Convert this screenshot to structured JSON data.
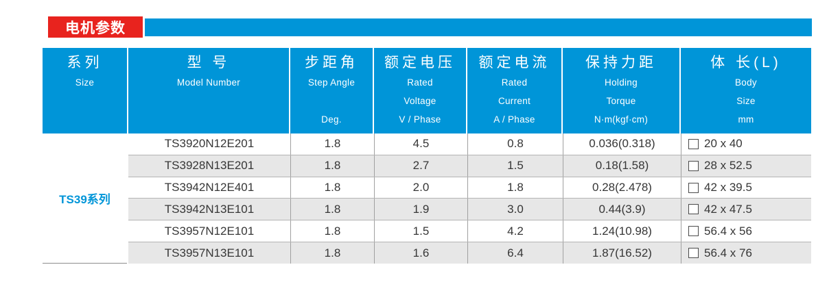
{
  "title": {
    "label": "电机参数"
  },
  "colors": {
    "accent_red": "#e8231e",
    "accent_blue": "#0095d8",
    "row_alt_gray": "#e7e7e7"
  },
  "table": {
    "headers": [
      {
        "zh": "系列",
        "en_lines": [
          "Size",
          "",
          ""
        ]
      },
      {
        "zh": "型 号",
        "en_lines": [
          "Model Number",
          "",
          ""
        ]
      },
      {
        "zh": "步距角",
        "en_lines": [
          "Step Angle",
          "",
          "Deg."
        ]
      },
      {
        "zh": "额定电压",
        "en_lines": [
          "Rated",
          "Voltage",
          "V / Phase"
        ]
      },
      {
        "zh": "额定电流",
        "en_lines": [
          "Rated",
          "Current",
          "A / Phase"
        ]
      },
      {
        "zh": "保持力距",
        "en_lines": [
          "Holding",
          "Torque",
          "N·m(kgf·cm)"
        ]
      },
      {
        "zh": "体 长(L)",
        "en_lines": [
          "Body",
          "Size",
          "mm"
        ]
      }
    ],
    "series_label": "TS39系列",
    "rows": [
      {
        "model": "TS3920N12E201",
        "step": "1.8",
        "voltage": "4.5",
        "current": "0.8",
        "torque": "0.036(0.318)",
        "body": "20 x 40"
      },
      {
        "model": "TS3928N13E201",
        "step": "1.8",
        "voltage": "2.7",
        "current": "1.5",
        "torque": "0.18(1.58)",
        "body": "28 x 52.5"
      },
      {
        "model": "TS3942N12E401",
        "step": "1.8",
        "voltage": "2.0",
        "current": "1.8",
        "torque": "0.28(2.478)",
        "body": "42 x 39.5"
      },
      {
        "model": "TS3942N13E101",
        "step": "1.8",
        "voltage": "1.9",
        "current": "3.0",
        "torque": "0.44(3.9)",
        "body": "42 x 47.5"
      },
      {
        "model": "TS3957N12E101",
        "step": "1.8",
        "voltage": "1.5",
        "current": "4.2",
        "torque": "1.24(10.98)",
        "body": "56.4 x 56"
      },
      {
        "model": "TS3957N13E101",
        "step": "1.8",
        "voltage": "1.6",
        "current": "6.4",
        "torque": "1.87(16.52)",
        "body": "56.4 x 76"
      }
    ]
  }
}
